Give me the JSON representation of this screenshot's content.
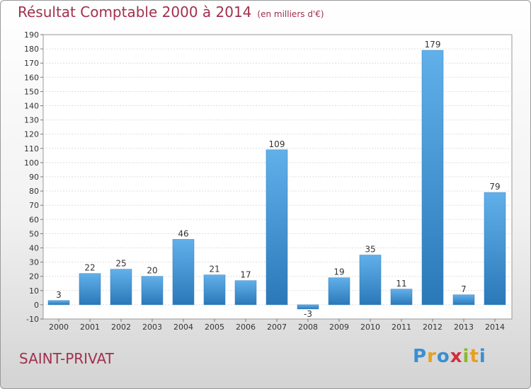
{
  "title": "Résultat Comptable 2000 à 2014",
  "subtitle": "(en milliers d'€)",
  "commune": "SAINT-PRIVAT",
  "logo": {
    "text": "Proxiti",
    "letters": [
      {
        "ch": "P",
        "color": "#3a8fd0"
      },
      {
        "ch": "r",
        "color": "#e8a020"
      },
      {
        "ch": "o",
        "color": "#3a8fd0"
      },
      {
        "ch": "x",
        "color": "#d03040"
      },
      {
        "ch": "i",
        "color": "#8ab832"
      },
      {
        "ch": "t",
        "color": "#e8a020"
      },
      {
        "ch": "i",
        "color": "#3a8fd0"
      }
    ]
  },
  "chart_data": {
    "type": "bar",
    "categories": [
      "2000",
      "2001",
      "2002",
      "2003",
      "2004",
      "2005",
      "2006",
      "2007",
      "2008",
      "2009",
      "2010",
      "2011",
      "2012",
      "2013",
      "2014"
    ],
    "values": [
      3,
      22,
      25,
      20,
      46,
      21,
      17,
      109,
      -3,
      19,
      35,
      11,
      179,
      7,
      79
    ],
    "data_labels": [
      "3",
      "22",
      "25",
      "20",
      "46",
      "21",
      "17",
      "109",
      "-3",
      "19",
      "35",
      "11",
      "179",
      "7",
      "79"
    ],
    "ylim": [
      -10,
      190
    ],
    "ytick_step": 10,
    "grid": true,
    "bar_color_top": "#62b0ea",
    "bar_color_bottom": "#2a78b8"
  }
}
